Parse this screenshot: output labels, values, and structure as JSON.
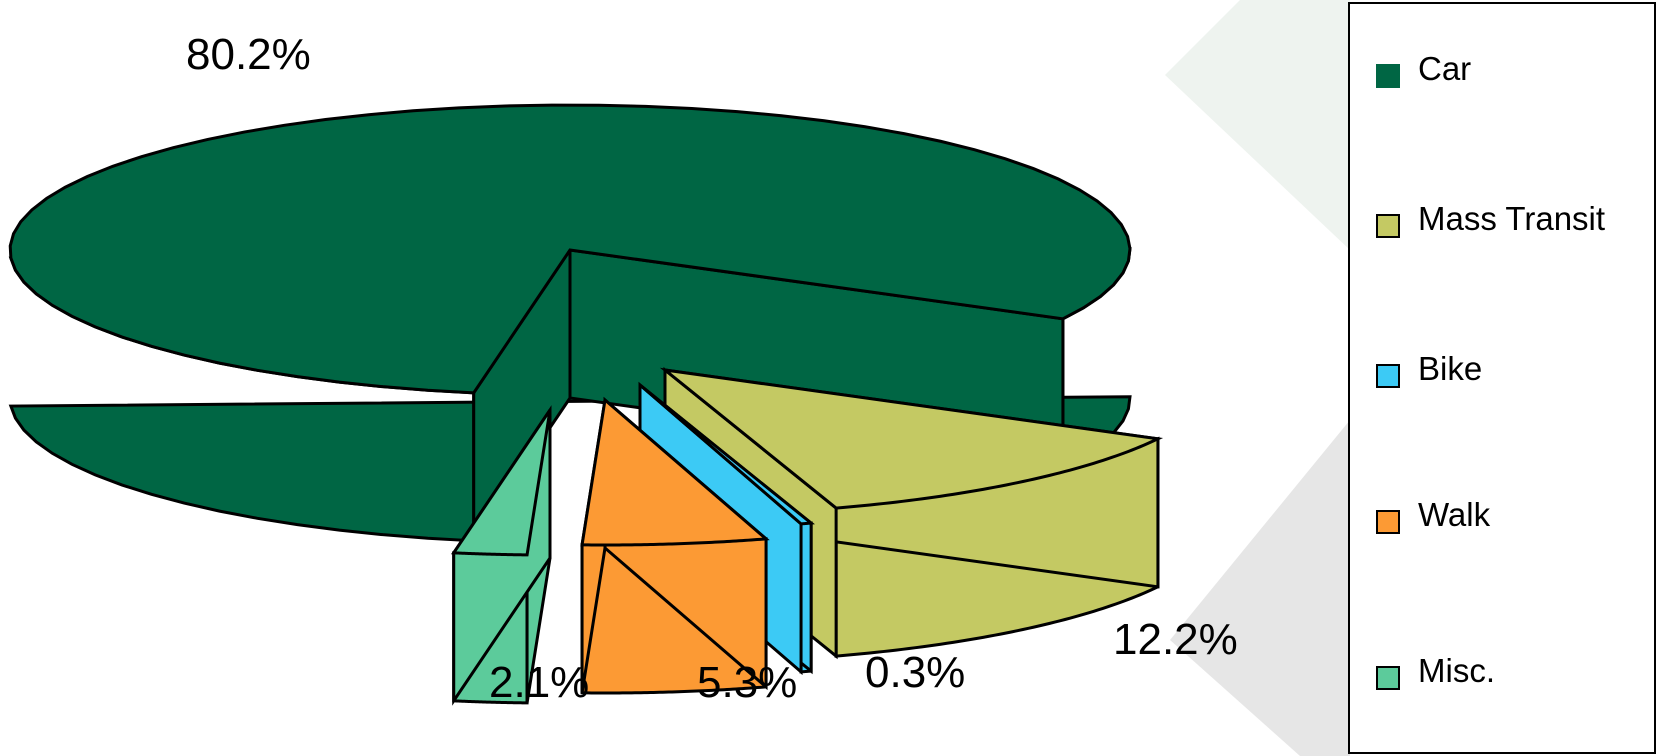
{
  "chart_data": {
    "type": "pie",
    "title": "",
    "style": "3d-exploded",
    "legend_position": "right",
    "series": [
      {
        "name": "Car",
        "value": 80.2,
        "label": "80.2%",
        "color": "#006644"
      },
      {
        "name": "Mass Transit",
        "value": 12.2,
        "label": "12.2%",
        "color": "#C4C963"
      },
      {
        "name": "Bike",
        "value": 0.3,
        "label": "0.3%",
        "color": "#3CCAF5"
      },
      {
        "name": "Walk",
        "value": 5.3,
        "label": "5.3%",
        "color": "#FC9A34"
      },
      {
        "name": "Misc.",
        "value": 2.1,
        "label": "2.1%",
        "color": "#5CCB9B"
      }
    ]
  },
  "legend": {
    "items": [
      {
        "label": "Car",
        "color": "#006644"
      },
      {
        "label": "Mass Transit",
        "color": "#C4C963"
      },
      {
        "label": "Bike",
        "color": "#3CCAF5"
      },
      {
        "label": "Walk",
        "color": "#FC9A34"
      },
      {
        "label": "Misc.",
        "color": "#5CCB9B"
      }
    ]
  },
  "colors": {
    "background_accent_light": "#EEF3EF",
    "background_accent_gray": "#E6E6E6",
    "outline": "#000000"
  }
}
